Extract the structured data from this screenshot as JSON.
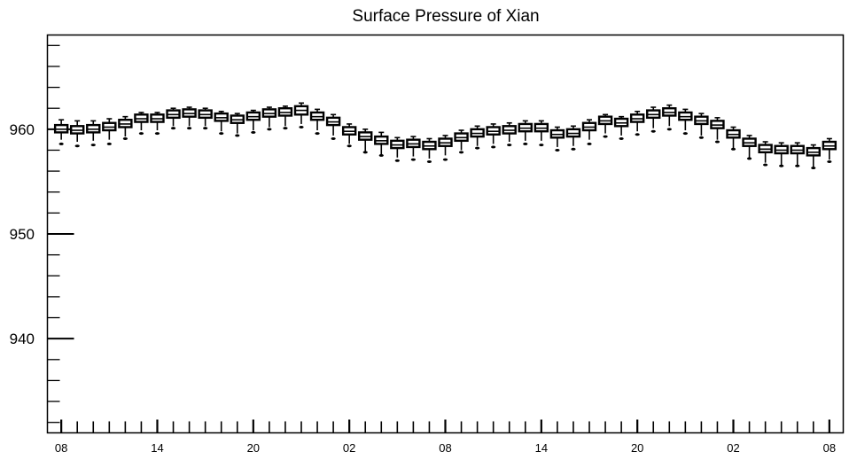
{
  "chart_data": {
    "type": "box",
    "title": "Surface Pressure of Xian",
    "xlabel": "",
    "ylabel": "",
    "ylim": [
      931,
      969
    ],
    "y_ticks": [
      940,
      950,
      960
    ],
    "y_tick_labels": [
      "940",
      "950",
      "960"
    ],
    "x_tick_labels": [
      "08",
      "14",
      "20",
      "02",
      "08",
      "14",
      "20",
      "02",
      "08"
    ],
    "x_tick_positions": [
      0,
      9,
      18,
      27,
      36,
      45,
      54,
      63,
      72
    ],
    "x_minor_step": 1.5,
    "x_range": [
      -1.3,
      73.3
    ],
    "grid": false,
    "step_hours": 1.5,
    "series": [
      {
        "x": [
          0,
          1.5,
          3,
          4.5,
          6,
          7.5,
          9,
          10.5,
          12,
          13.5,
          15,
          16.5,
          18,
          19.5,
          21,
          22.5,
          24,
          25.5,
          27,
          28.5,
          30,
          31.5,
          33,
          34.5,
          36,
          37.5,
          39,
          40.5,
          42,
          43.5,
          45,
          46.5,
          48,
          49.5,
          51,
          52.5,
          54,
          55.5,
          57,
          58.5,
          60,
          61.5,
          63,
          64.5,
          66,
          67.5,
          69,
          70.5,
          72
        ],
        "median": [
          960.0,
          959.9,
          960.0,
          960.2,
          960.5,
          961.0,
          961.0,
          961.4,
          961.5,
          961.4,
          961.1,
          960.9,
          961.2,
          961.5,
          961.6,
          961.8,
          961.2,
          960.7,
          959.8,
          959.3,
          958.9,
          958.5,
          958.6,
          958.4,
          958.7,
          959.2,
          959.6,
          959.8,
          959.9,
          960.1,
          960.1,
          959.5,
          959.6,
          960.2,
          960.8,
          960.6,
          961.0,
          961.4,
          961.6,
          961.2,
          960.8,
          960.4,
          959.5,
          958.7,
          958.1,
          958.0,
          958.0,
          957.8,
          958.4
        ],
        "q1": [
          959.7,
          959.6,
          959.7,
          959.9,
          960.2,
          960.7,
          960.7,
          961.1,
          961.2,
          961.1,
          960.8,
          960.6,
          960.9,
          961.2,
          961.3,
          961.4,
          960.9,
          960.4,
          959.5,
          959.0,
          958.6,
          958.2,
          958.3,
          958.1,
          958.4,
          958.9,
          959.3,
          959.5,
          959.6,
          959.8,
          959.8,
          959.2,
          959.3,
          959.9,
          960.5,
          960.3,
          960.7,
          961.1,
          961.3,
          960.9,
          960.5,
          960.1,
          959.2,
          958.4,
          957.8,
          957.7,
          957.7,
          957.5,
          958.1
        ],
        "q3": [
          960.4,
          960.3,
          960.4,
          960.6,
          960.9,
          961.4,
          961.4,
          961.8,
          961.9,
          961.8,
          961.5,
          961.3,
          961.6,
          961.9,
          962.0,
          962.2,
          961.6,
          961.1,
          960.2,
          959.7,
          959.3,
          958.9,
          959.0,
          958.8,
          959.1,
          959.6,
          960.0,
          960.2,
          960.3,
          960.5,
          960.5,
          959.9,
          960.0,
          960.6,
          961.2,
          961.0,
          961.4,
          961.8,
          962.0,
          961.6,
          961.2,
          960.8,
          959.9,
          959.1,
          958.5,
          958.4,
          958.4,
          958.2,
          958.8
        ],
        "whisker_low": [
          959.0,
          958.8,
          958.9,
          959.0,
          959.3,
          959.9,
          959.9,
          960.3,
          960.3,
          960.3,
          959.8,
          959.6,
          959.9,
          960.2,
          960.3,
          960.5,
          959.9,
          959.4,
          958.6,
          957.9,
          957.5,
          957.3,
          957.4,
          957.2,
          957.5,
          958.0,
          958.4,
          958.6,
          958.8,
          958.9,
          958.9,
          958.3,
          958.4,
          959.0,
          959.6,
          959.4,
          959.8,
          960.1,
          960.3,
          959.9,
          959.4,
          959.0,
          958.2,
          957.3,
          956.8,
          956.6,
          956.6,
          956.4,
          957.1
        ],
        "whisker_high": [
          960.9,
          960.8,
          960.8,
          961.0,
          961.2,
          961.6,
          961.6,
          962.0,
          962.1,
          962.0,
          961.7,
          961.5,
          961.8,
          962.1,
          962.2,
          962.5,
          961.9,
          961.4,
          960.5,
          960.0,
          959.7,
          959.2,
          959.3,
          959.1,
          959.4,
          959.9,
          960.3,
          960.5,
          960.6,
          960.8,
          960.8,
          960.2,
          960.3,
          960.9,
          961.4,
          961.2,
          961.7,
          962.1,
          962.3,
          961.9,
          961.5,
          961.1,
          960.2,
          959.4,
          958.8,
          958.7,
          958.7,
          958.5,
          959.1
        ],
        "outlier": [
          958.6,
          958.4,
          958.5,
          958.6,
          959.1,
          959.6,
          959.6,
          960.1,
          960.1,
          960.1,
          959.6,
          959.4,
          959.7,
          960.0,
          960.1,
          960.2,
          959.6,
          959.1,
          958.4,
          957.8,
          957.5,
          957.0,
          957.1,
          956.9,
          957.1,
          957.8,
          958.2,
          958.3,
          958.5,
          958.6,
          958.5,
          958.0,
          958.1,
          958.6,
          959.3,
          959.1,
          959.5,
          959.8,
          960.0,
          959.6,
          959.2,
          958.8,
          958.1,
          957.2,
          956.6,
          956.5,
          956.5,
          956.3,
          956.9
        ]
      }
    ]
  }
}
